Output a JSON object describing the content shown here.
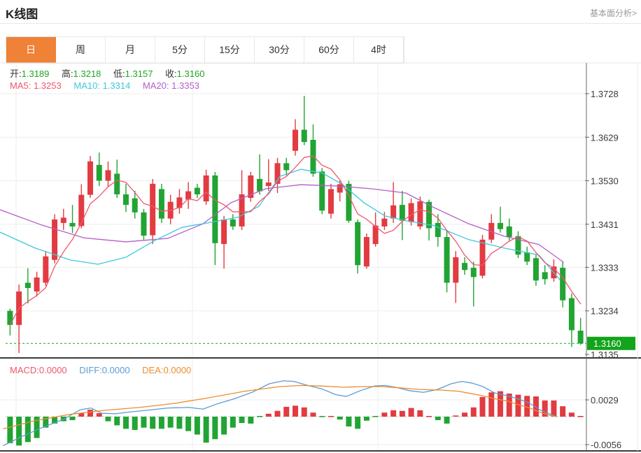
{
  "header": {
    "title": "K线图",
    "link": "基本面分析>"
  },
  "tabs": {
    "items": [
      "日",
      "周",
      "月",
      "5分",
      "15分",
      "30分",
      "60分",
      "4时"
    ],
    "active": "日"
  },
  "overlay": {
    "ohlc": [
      {
        "label": "开:",
        "value": "1.3189"
      },
      {
        "label": "高:",
        "value": "1.3218"
      },
      {
        "label": "低:",
        "value": "1.3157"
      },
      {
        "label": "收:",
        "value": "1.3160"
      }
    ],
    "ma": [
      {
        "label": "MA5:",
        "value": "1.3253"
      },
      {
        "label": "MA10:",
        "value": "1.3314"
      },
      {
        "label": "MA20:",
        "value": "1.3353"
      }
    ],
    "macd": [
      {
        "label": "MACD:",
        "value": "0.0000"
      },
      {
        "label": "DIFF:",
        "value": "0.0000"
      },
      {
        "label": "DEA:",
        "value": "0.0000"
      }
    ]
  },
  "colors": {
    "up": "#e23b41",
    "down": "#21a433",
    "ma5": "#f0566e",
    "ma10": "#3ec8dc",
    "ma20": "#b35fc8",
    "diff": "#5b9bd5",
    "dea": "#ef8c2f",
    "ohlc_value": "#21a621",
    "accent": "#ef8236",
    "price_box": "#12a41b",
    "price_dash": "#18a428",
    "grid": "#ededed",
    "vgrid": "#e9eef1",
    "axis_line": "#6a6a6a",
    "axis_text": "#3a3a3a",
    "panel_border": "#3a3a3a",
    "top_border": "#e4e4e4"
  },
  "chart_data": {
    "type": "candlestick",
    "title": "K线图 (daily K-line with MA5/MA10/MA20 and MACD)",
    "legend_position": "top-left overlay",
    "grid": true,
    "y_axis": {
      "ticks": [
        1.3728,
        1.3629,
        1.353,
        1.3431,
        1.3333,
        1.3234
      ],
      "bottom_tick": 1.3135,
      "current_price": 1.316,
      "current_price_label": "1.3160"
    },
    "candles": [
      [
        1.3234,
        1.3239,
        1.3178,
        1.3202
      ],
      [
        1.3202,
        1.3294,
        1.3138,
        1.3278
      ],
      [
        1.3298,
        1.3331,
        1.3251,
        1.3286
      ],
      [
        1.3278,
        1.3323,
        1.3267,
        1.331
      ],
      [
        1.3298,
        1.337,
        1.3291,
        1.3358
      ],
      [
        1.335,
        1.3454,
        1.3342,
        1.3442
      ],
      [
        1.3434,
        1.3466,
        1.3418,
        1.3446
      ],
      [
        1.3434,
        1.3475,
        1.3411,
        1.3426
      ],
      [
        1.3427,
        1.3522,
        1.3422,
        1.3498
      ],
      [
        1.3498,
        1.3586,
        1.3491,
        1.3574
      ],
      [
        1.3566,
        1.3594,
        1.3518,
        1.353
      ],
      [
        1.353,
        1.3574,
        1.3515,
        1.3554
      ],
      [
        1.3546,
        1.3578,
        1.3491,
        1.3499
      ],
      [
        1.3499,
        1.3523,
        1.3459,
        1.3475
      ],
      [
        1.349,
        1.3507,
        1.3444,
        1.3458
      ],
      [
        1.3458,
        1.3466,
        1.3395,
        1.3405
      ],
      [
        1.3406,
        1.3534,
        1.3386,
        1.3523
      ],
      [
        1.3511,
        1.3523,
        1.3434,
        1.3444
      ],
      [
        1.3444,
        1.3498,
        1.3431,
        1.3482
      ],
      [
        1.3468,
        1.3511,
        1.3455,
        1.3492
      ],
      [
        1.3487,
        1.3527,
        1.3466,
        1.3506
      ],
      [
        1.3514,
        1.3523,
        1.3491,
        1.3499
      ],
      [
        1.3483,
        1.3555,
        1.3475,
        1.3542
      ],
      [
        1.3542,
        1.355,
        1.3338,
        1.3388
      ],
      [
        1.3386,
        1.345,
        1.333,
        1.3442
      ],
      [
        1.3442,
        1.3454,
        1.3418,
        1.3426
      ],
      [
        1.3426,
        1.3554,
        1.3418,
        1.3499
      ],
      [
        1.3491,
        1.355,
        1.3482,
        1.3542
      ],
      [
        1.3534,
        1.359,
        1.3498,
        1.3506
      ],
      [
        1.3518,
        1.3579,
        1.3507,
        1.3526
      ],
      [
        1.3523,
        1.3582,
        1.3502,
        1.357
      ],
      [
        1.357,
        1.3582,
        1.3542,
        1.3554
      ],
      [
        1.3598,
        1.367,
        1.3587,
        1.3646
      ],
      [
        1.3646,
        1.3723,
        1.3611,
        1.3618
      ],
      [
        1.3623,
        1.3658,
        1.3539,
        1.3546
      ],
      [
        1.3551,
        1.3559,
        1.3454,
        1.3462
      ],
      [
        1.3455,
        1.3523,
        1.3444,
        1.3511
      ],
      [
        1.3503,
        1.353,
        1.3483,
        1.3522
      ],
      [
        1.3523,
        1.353,
        1.3434,
        1.3439
      ],
      [
        1.3436,
        1.3442,
        1.3319,
        1.3338
      ],
      [
        1.3335,
        1.341,
        1.333,
        1.3402
      ],
      [
        1.3386,
        1.3458,
        1.338,
        1.3428
      ],
      [
        1.3426,
        1.3459,
        1.3418,
        1.3444
      ],
      [
        1.3444,
        1.3527,
        1.3434,
        1.3474
      ],
      [
        1.3475,
        1.3507,
        1.3395,
        1.3439
      ],
      [
        1.3436,
        1.349,
        1.3428,
        1.3479
      ],
      [
        1.3426,
        1.3494,
        1.3419,
        1.3483
      ],
      [
        1.3482,
        1.3487,
        1.3394,
        1.3422
      ],
      [
        1.3434,
        1.3454,
        1.338,
        1.3402
      ],
      [
        1.3402,
        1.3418,
        1.3276,
        1.3298
      ],
      [
        1.3298,
        1.337,
        1.3252,
        1.3356
      ],
      [
        1.3343,
        1.3356,
        1.3316,
        1.3327
      ],
      [
        1.3332,
        1.3346,
        1.3244,
        1.3311
      ],
      [
        1.3314,
        1.3407,
        1.3308,
        1.3396
      ],
      [
        1.3396,
        1.3454,
        1.3388,
        1.3434
      ],
      [
        1.3434,
        1.3471,
        1.3412,
        1.342
      ],
      [
        1.3426,
        1.3444,
        1.3394,
        1.3402
      ],
      [
        1.3404,
        1.3415,
        1.3354,
        1.3362
      ],
      [
        1.3367,
        1.338,
        1.3338,
        1.3346
      ],
      [
        1.3354,
        1.3362,
        1.3291,
        1.3303
      ],
      [
        1.3322,
        1.3338,
        1.3294,
        1.3306
      ],
      [
        1.3308,
        1.3351,
        1.33,
        1.3335
      ],
      [
        1.3332,
        1.3346,
        1.3242,
        1.3258
      ],
      [
        1.3263,
        1.3274,
        1.3152,
        1.319
      ],
      [
        1.3189,
        1.3218,
        1.3157,
        1.316
      ]
    ],
    "ma_lines": {
      "ma5": "computed from closes (5-period simple average)",
      "ma10_points": [
        [
          0,
          1.3413
        ],
        [
          50,
          1.3377
        ],
        [
          100,
          1.335
        ],
        [
          140,
          1.334
        ],
        [
          180,
          1.3356
        ],
        [
          220,
          1.3393
        ],
        [
          260,
          1.3424
        ],
        [
          300,
          1.3435
        ],
        [
          340,
          1.3447
        ],
        [
          370,
          1.3472
        ],
        [
          400,
          1.354
        ],
        [
          430,
          1.3556
        ],
        [
          460,
          1.3548
        ],
        [
          490,
          1.3521
        ],
        [
          520,
          1.348
        ],
        [
          550,
          1.345
        ],
        [
          580,
          1.3439
        ],
        [
          620,
          1.3428
        ],
        [
          670,
          1.3396
        ],
        [
          720,
          1.3377
        ],
        [
          770,
          1.3361
        ],
        [
          800,
          1.3305
        ]
      ],
      "ma20_points": [
        [
          0,
          1.3464
        ],
        [
          60,
          1.3429
        ],
        [
          120,
          1.34
        ],
        [
          180,
          1.3391
        ],
        [
          240,
          1.3399
        ],
        [
          290,
          1.3432
        ],
        [
          330,
          1.348
        ],
        [
          380,
          1.3512
        ],
        [
          430,
          1.3521
        ],
        [
          480,
          1.3518
        ],
        [
          530,
          1.3512
        ],
        [
          580,
          1.3502
        ],
        [
          620,
          1.3469
        ],
        [
          670,
          1.3432
        ],
        [
          720,
          1.3404
        ],
        [
          770,
          1.3385
        ],
        [
          805,
          1.3345
        ]
      ]
    },
    "macd": {
      "ticks": [
        0.0029,
        -0.0056
      ],
      "tick_labels": [
        "0.0029",
        "-0.0056"
      ],
      "histogram": [
        -0.0046,
        -0.005,
        -0.0044,
        -0.0037,
        -0.0019,
        -0.0012,
        -0.0008,
        -0.0006,
        0.0006,
        0.0012,
        0.0006,
        -0.0008,
        -0.0015,
        -0.0021,
        -0.0023,
        -0.0019,
        -0.0021,
        -0.0021,
        -0.0019,
        -0.0021,
        -0.0025,
        -0.0031,
        -0.0045,
        -0.0039,
        -0.0031,
        -0.0019,
        -0.0011,
        -0.0012,
        -0.0001,
        0.0005,
        0.001,
        0.0017,
        0.0019,
        0.0016,
        0.0007,
        -0.0001,
        0.0001,
        -0.0005,
        -0.0017,
        -0.0021,
        -0.0007,
        -0.0001,
        0.0007,
        0.0011,
        0.001,
        0.0015,
        0.0011,
        0.0001,
        -0.0006,
        -0.0012,
        0.0002,
        0.0007,
        0.0016,
        0.0034,
        0.0042,
        0.0044,
        0.004,
        0.0038,
        0.0036,
        0.0035,
        0.0028,
        0.0028,
        0.0018,
        0.0007,
        0.0001
      ],
      "diff_points": [
        [
          5,
          -0.005
        ],
        [
          30,
          -0.0035
        ],
        [
          60,
          -0.0019
        ],
        [
          90,
          -0.0005
        ],
        [
          115,
          0.0012
        ],
        [
          130,
          0.0015
        ],
        [
          145,
          0.0006
        ],
        [
          165,
          0.0005
        ],
        [
          185,
          0.0008
        ],
        [
          210,
          0.0011
        ],
        [
          240,
          0.0015
        ],
        [
          270,
          0.0016
        ],
        [
          290,
          0.0013
        ],
        [
          310,
          0.0022
        ],
        [
          335,
          0.0031
        ],
        [
          360,
          0.0042
        ],
        [
          385,
          0.0057
        ],
        [
          405,
          0.0062
        ],
        [
          420,
          0.0061
        ],
        [
          440,
          0.0054
        ],
        [
          460,
          0.0048
        ],
        [
          480,
          0.0038
        ],
        [
          495,
          0.0035
        ],
        [
          515,
          0.0045
        ],
        [
          535,
          0.0053
        ],
        [
          550,
          0.0054
        ],
        [
          565,
          0.0051
        ],
        [
          585,
          0.0045
        ],
        [
          605,
          0.0042
        ],
        [
          625,
          0.0047
        ],
        [
          645,
          0.0057
        ],
        [
          660,
          0.0061
        ],
        [
          675,
          0.0058
        ],
        [
          690,
          0.0052
        ],
        [
          707,
          0.0041
        ],
        [
          725,
          0.0036
        ],
        [
          740,
          0.0031
        ],
        [
          757,
          0.0023
        ],
        [
          773,
          0.0011
        ],
        [
          787,
          0.0004
        ],
        [
          795,
          0.0
        ]
      ],
      "dea_points": [
        [
          5,
          -0.0021
        ],
        [
          50,
          -0.0007
        ],
        [
          100,
          0.0004
        ],
        [
          150,
          0.0011
        ],
        [
          200,
          0.0016
        ],
        [
          250,
          0.0023
        ],
        [
          300,
          0.0033
        ],
        [
          350,
          0.0044
        ],
        [
          400,
          0.0052
        ],
        [
          430,
          0.0054
        ],
        [
          460,
          0.0053
        ],
        [
          490,
          0.0051
        ],
        [
          520,
          0.0052
        ],
        [
          545,
          0.0052
        ],
        [
          570,
          0.005
        ],
        [
          600,
          0.0047
        ],
        [
          630,
          0.0046
        ],
        [
          655,
          0.0044
        ],
        [
          673,
          0.004
        ],
        [
          690,
          0.0036
        ],
        [
          707,
          0.0031
        ],
        [
          725,
          0.0027
        ],
        [
          740,
          0.0021
        ],
        [
          757,
          0.0015
        ],
        [
          773,
          0.0007
        ],
        [
          787,
          0.0002
        ],
        [
          795,
          0.0
        ]
      ]
    }
  }
}
